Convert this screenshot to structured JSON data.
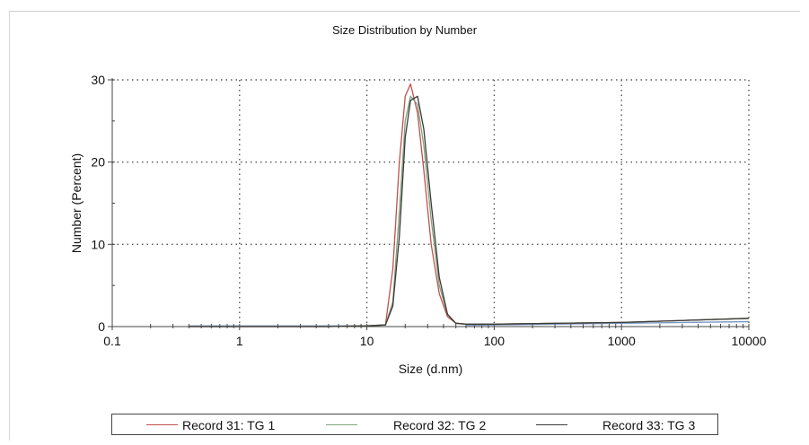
{
  "chart_data": {
    "type": "line",
    "title": "Size Distribution by Number",
    "xlabel": "Size (d.nm)",
    "ylabel": "Number (Percent)",
    "xscale": "log",
    "xlim": [
      0.1,
      10000
    ],
    "ylim": [
      0,
      30
    ],
    "xticks": [
      "0.1",
      "1",
      "10",
      "100",
      "1000",
      "10000"
    ],
    "yticks": [
      "0",
      "10",
      "20",
      "30"
    ],
    "grid": true,
    "legend_position": "bottom",
    "series": [
      {
        "name": "Record 31: TG 1",
        "color": "#c0504d",
        "x": [
          0.4,
          1,
          5,
          10,
          14,
          16,
          18,
          20,
          22,
          25,
          28,
          32,
          37,
          43,
          50,
          60,
          100,
          1000,
          10000
        ],
        "y": [
          0,
          0,
          0,
          0.1,
          0.2,
          7,
          20,
          28,
          29.5,
          26,
          19,
          10,
          4,
          1.2,
          0.4,
          0.3,
          0.3,
          0.5,
          1.0
        ]
      },
      {
        "name": "Record 32: TG 2",
        "color": "#7fa37f",
        "x": [
          0.4,
          1,
          5,
          10,
          14,
          16,
          18,
          20,
          22,
          25,
          28,
          32,
          37,
          43,
          50,
          60,
          100,
          1000,
          10000
        ],
        "y": [
          0,
          0,
          0,
          0.1,
          0.2,
          3,
          14,
          25,
          28,
          27,
          22,
          13,
          5,
          1.5,
          0.4,
          0.3,
          0.3,
          0.5,
          1.0
        ]
      },
      {
        "name": "Record 33: TG 3",
        "color": "#3a3a3a",
        "x": [
          0.4,
          1,
          5,
          10,
          14,
          16,
          18,
          20,
          22,
          25,
          28,
          32,
          37,
          43,
          50,
          60,
          100,
          1000,
          10000
        ],
        "y": [
          0,
          0,
          0,
          0.1,
          0.2,
          2.5,
          11,
          23,
          27.5,
          28,
          24,
          15,
          6,
          1.5,
          0.4,
          0.3,
          0.3,
          0.5,
          1.0
        ]
      }
    ],
    "axis_color": "#444444",
    "grid_color": "#555555",
    "baseline_color": "#5a7fb8"
  }
}
